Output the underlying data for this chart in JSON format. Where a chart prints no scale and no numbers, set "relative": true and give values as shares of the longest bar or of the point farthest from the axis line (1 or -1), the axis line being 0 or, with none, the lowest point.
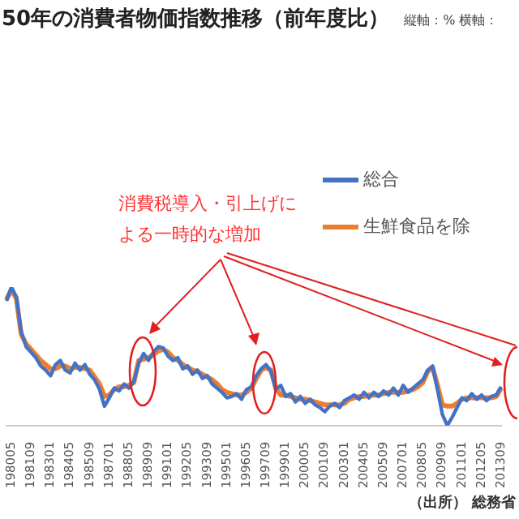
{
  "chart_data": {
    "type": "line",
    "title": "50年の消費者物価指数推移（前年度比）",
    "subtitle": "縦軸：% 横軸：",
    "relative": true,
    "legend": "top right",
    "annotations": [
      "消費税導入・引上げに",
      "よる一時的な増加",
      "（出所） 総務省"
    ],
    "categories": [
      null,
      "198005",
      null,
      null,
      null,
      "198109",
      null,
      null,
      null,
      "198301",
      null,
      null,
      null,
      "198405",
      null,
      null,
      null,
      "198509",
      null,
      null,
      null,
      "198701",
      null,
      null,
      null,
      "198805",
      null,
      null,
      null,
      "198909",
      null,
      null,
      null,
      "199101",
      null,
      null,
      null,
      "199205",
      null,
      null,
      null,
      "199309",
      null,
      null,
      null,
      "199501",
      null,
      null,
      null,
      "199605",
      null,
      null,
      null,
      "199709",
      null,
      null,
      null,
      "199901",
      null,
      null,
      null,
      "200005",
      null,
      null,
      null,
      "200109",
      null,
      null,
      null,
      "200301",
      null,
      null,
      null,
      "200405",
      null,
      null,
      null,
      "200509",
      null,
      null,
      null,
      "200701",
      null,
      null,
      null,
      "200805",
      null,
      null,
      null,
      "200909",
      null,
      null,
      null,
      "201101",
      null,
      null,
      null,
      "201205",
      null,
      null,
      null,
      "201309"
    ],
    "series": [
      {
        "name": "総合",
        "color": "#4472c4",
        "values": [
          0.9,
          1.0,
          0.93,
          0.68,
          0.57,
          0.53,
          0.49,
          0.43,
          0.4,
          0.36,
          0.44,
          0.47,
          0.4,
          0.38,
          0.45,
          0.4,
          0.44,
          0.37,
          0.33,
          0.26,
          0.14,
          0.2,
          0.27,
          0.25,
          0.3,
          0.27,
          0.32,
          0.45,
          0.52,
          0.47,
          0.53,
          0.57,
          0.56,
          0.5,
          0.47,
          0.49,
          0.41,
          0.43,
          0.37,
          0.4,
          0.34,
          0.36,
          0.3,
          0.27,
          0.24,
          0.2,
          0.21,
          0.23,
          0.19,
          0.26,
          0.28,
          0.36,
          0.41,
          0.44,
          0.39,
          0.26,
          0.29,
          0.21,
          0.23,
          0.17,
          0.21,
          0.16,
          0.19,
          0.15,
          0.13,
          0.1,
          0.14,
          0.16,
          0.13,
          0.18,
          0.2,
          0.22,
          0.19,
          0.24,
          0.2,
          0.24,
          0.21,
          0.25,
          0.22,
          0.27,
          0.22,
          0.29,
          0.24,
          0.27,
          0.3,
          0.33,
          0.4,
          0.43,
          0.26,
          0.08,
          0.0,
          0.06,
          0.13,
          0.2,
          0.18,
          0.23,
          0.19,
          0.22,
          0.18,
          0.21,
          0.22,
          0.28
        ]
      },
      {
        "name": "生鮮食品を除",
        "color": "#ed7d31",
        "values": [
          0.91,
          0.98,
          0.92,
          0.66,
          0.59,
          0.55,
          0.51,
          0.47,
          0.44,
          0.41,
          0.41,
          0.43,
          0.43,
          0.41,
          0.42,
          0.42,
          0.41,
          0.4,
          0.35,
          0.3,
          0.21,
          0.22,
          0.26,
          0.28,
          0.28,
          0.29,
          0.31,
          0.47,
          0.48,
          0.49,
          0.51,
          0.54,
          0.55,
          0.53,
          0.49,
          0.47,
          0.44,
          0.42,
          0.4,
          0.39,
          0.37,
          0.35,
          0.33,
          0.3,
          0.26,
          0.24,
          0.23,
          0.22,
          0.22,
          0.24,
          0.27,
          0.34,
          0.4,
          0.42,
          0.4,
          0.27,
          0.22,
          0.22,
          0.21,
          0.2,
          0.19,
          0.19,
          0.18,
          0.17,
          0.16,
          0.15,
          0.15,
          0.15,
          0.15,
          0.16,
          0.19,
          0.2,
          0.21,
          0.21,
          0.22,
          0.22,
          0.22,
          0.23,
          0.24,
          0.24,
          0.24,
          0.24,
          0.25,
          0.26,
          0.28,
          0.31,
          0.39,
          0.42,
          0.29,
          0.15,
          0.14,
          0.14,
          0.16,
          0.19,
          0.2,
          0.2,
          0.2,
          0.2,
          0.2,
          0.2,
          0.21,
          0.27
        ]
      }
    ]
  }
}
